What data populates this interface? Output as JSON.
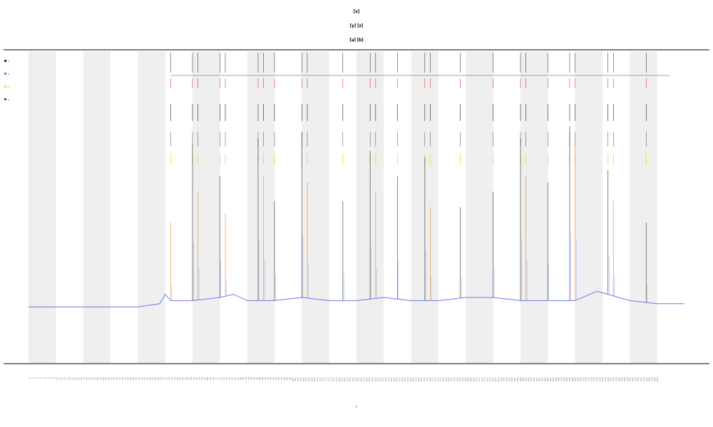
{
  "chart_data": {
    "type": "line",
    "title_lines": [
      "[x]",
      "[y] [z]",
      "[a] [b]"
    ],
    "xlabel": "t",
    "ylabel": "",
    "grid": false,
    "legend_position": "top-left",
    "band_color": "#efefef",
    "colors": {
      "baseline": "#6e78e8",
      "spike_black": "#222222",
      "spike_orange": "#e67e22",
      "spike_red": "#e03b3b",
      "spike_yellow": "#d8e23a",
      "frame": "#333333",
      "event_line": "#888888"
    },
    "legend": [
      {
        "label": "a",
        "color": "#222222"
      },
      {
        "label": "b",
        "color": "#6e78e8"
      },
      {
        "label": "c",
        "color": "#d8e23a"
      },
      {
        "label": "d",
        "color": "#555555"
      }
    ],
    "x_range": [
      0,
      240
    ],
    "y_range": [
      0,
      100
    ],
    "shaded_bands": [
      [
        0,
        10
      ],
      [
        20,
        30
      ],
      [
        40,
        50
      ],
      [
        60,
        70
      ],
      [
        80,
        90
      ],
      [
        100,
        110
      ],
      [
        120,
        130
      ],
      [
        140,
        150
      ],
      [
        160,
        170
      ],
      [
        180,
        190
      ],
      [
        200,
        210
      ],
      [
        220,
        230
      ]
    ],
    "baseline": {
      "x": [
        0,
        10,
        20,
        30,
        40,
        48,
        50,
        52,
        60,
        70,
        75,
        80,
        90,
        100,
        110,
        120,
        130,
        140,
        150,
        160,
        170,
        180,
        190,
        200,
        208,
        212,
        220,
        230,
        240
      ],
      "y": [
        18,
        18,
        18,
        18,
        18,
        19,
        22,
        20,
        20,
        21,
        22,
        20,
        20,
        21,
        20,
        20,
        21,
        20,
        20,
        21,
        21,
        20,
        20,
        20,
        23,
        22,
        20,
        19,
        19
      ]
    },
    "spikes": [
      {
        "x": 52,
        "height": 45,
        "color": "orange"
      },
      {
        "x": 60,
        "height": 70,
        "color": "black"
      },
      {
        "x": 62,
        "height": 55,
        "color": "orange"
      },
      {
        "x": 70,
        "height": 60,
        "color": "black"
      },
      {
        "x": 72,
        "height": 48,
        "color": "orange"
      },
      {
        "x": 84,
        "height": 72,
        "color": "black"
      },
      {
        "x": 86,
        "height": 60,
        "color": "orange"
      },
      {
        "x": 90,
        "height": 52,
        "color": "black"
      },
      {
        "x": 100,
        "height": 74,
        "color": "black"
      },
      {
        "x": 102,
        "height": 58,
        "color": "orange"
      },
      {
        "x": 115,
        "height": 52,
        "color": "black"
      },
      {
        "x": 125,
        "height": 68,
        "color": "black"
      },
      {
        "x": 127,
        "height": 55,
        "color": "orange"
      },
      {
        "x": 135,
        "height": 60,
        "color": "black"
      },
      {
        "x": 145,
        "height": 66,
        "color": "black"
      },
      {
        "x": 147,
        "height": 50,
        "color": "orange"
      },
      {
        "x": 158,
        "height": 50,
        "color": "black"
      },
      {
        "x": 170,
        "height": 55,
        "color": "black"
      },
      {
        "x": 180,
        "height": 72,
        "color": "black"
      },
      {
        "x": 182,
        "height": 60,
        "color": "orange"
      },
      {
        "x": 190,
        "height": 58,
        "color": "black"
      },
      {
        "x": 198,
        "height": 76,
        "color": "black"
      },
      {
        "x": 200,
        "height": 72,
        "color": "orange"
      },
      {
        "x": 212,
        "height": 62,
        "color": "black"
      },
      {
        "x": 214,
        "height": 52,
        "color": "orange"
      },
      {
        "x": 226,
        "height": 45,
        "color": "black"
      }
    ],
    "event_markers": [
      52,
      60,
      62,
      70,
      72,
      84,
      86,
      90,
      100,
      102,
      115,
      125,
      127,
      135,
      145,
      147,
      158,
      170,
      180,
      182,
      190,
      198,
      200,
      212,
      214,
      226
    ],
    "x_tick_count": 230
  }
}
